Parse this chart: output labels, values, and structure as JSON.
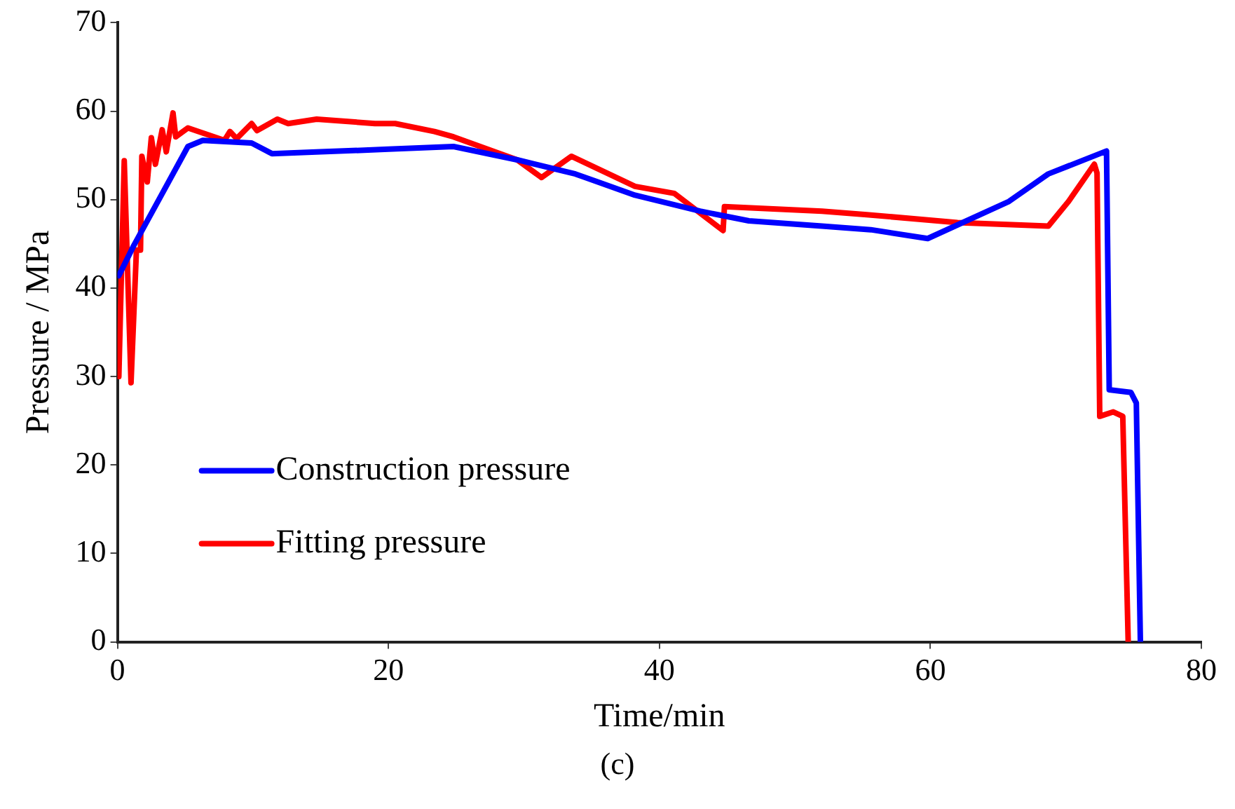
{
  "chart_data": {
    "type": "line",
    "xlabel": "Time/min",
    "ylabel": "Pressure / MPa",
    "xlim": [
      0,
      80
    ],
    "xticks": [
      0,
      20,
      40,
      60,
      80
    ],
    "ylim": [
      0,
      70
    ],
    "yticks": [
      0,
      10,
      20,
      30,
      40,
      50,
      60,
      70
    ],
    "grid": false,
    "legend": "bottom left",
    "marker": "none",
    "line_style": "solid",
    "annotations": [
      "(c)"
    ],
    "series": [
      {
        "name": "Construction pressure",
        "color": "#0000ff",
        "x": [
          0.1,
          1.2,
          5.2,
          6.3,
          9.9,
          11.4,
          15,
          20,
          24.8,
          29.5,
          33.8,
          38.2,
          43,
          46.6,
          52,
          55.6,
          59.8,
          65.8,
          68.7,
          73.0,
          73.2,
          74.8,
          75.2,
          75.5
        ],
        "values": [
          41.4,
          44.8,
          56.0,
          56.7,
          56.4,
          55.2,
          55.4,
          55.7,
          56.0,
          54.5,
          52.9,
          50.5,
          48.7,
          47.6,
          47.0,
          46.6,
          45.6,
          49.8,
          52.9,
          55.5,
          28.5,
          28.2,
          27,
          0
        ]
      },
      {
        "name": "Fitting pressure",
        "color": "#ff0000",
        "x": [
          0.1,
          0.5,
          1.0,
          1.4,
          1.7,
          1.8,
          2.2,
          2.5,
          2.8,
          3.3,
          3.6,
          4.1,
          4.3,
          5.2,
          7.9,
          8.3,
          8.8,
          9.9,
          10.3,
          11.8,
          12.6,
          14.7,
          19,
          20.5,
          23.4,
          24.8,
          29.5,
          31.3,
          33.5,
          38.2,
          41.1,
          44.7,
          44.8,
          52,
          55.3,
          62,
          68.7,
          70.2,
          72.1,
          72.3,
          72.5,
          73.5,
          74.2,
          74.6
        ],
        "values": [
          30,
          54.4,
          29.3,
          44.3,
          44.3,
          54.9,
          52,
          57,
          54,
          57.9,
          55.4,
          59.8,
          57.1,
          58.1,
          56.7,
          57.7,
          56.9,
          58.6,
          57.8,
          59.1,
          58.6,
          59.1,
          58.6,
          58.6,
          57.7,
          57.1,
          54.5,
          52.5,
          54.9,
          51.5,
          50.7,
          46.5,
          49.2,
          48.7,
          48.3,
          47.4,
          47,
          49.8,
          54,
          53,
          25.5,
          26,
          25.5,
          0
        ]
      }
    ]
  }
}
